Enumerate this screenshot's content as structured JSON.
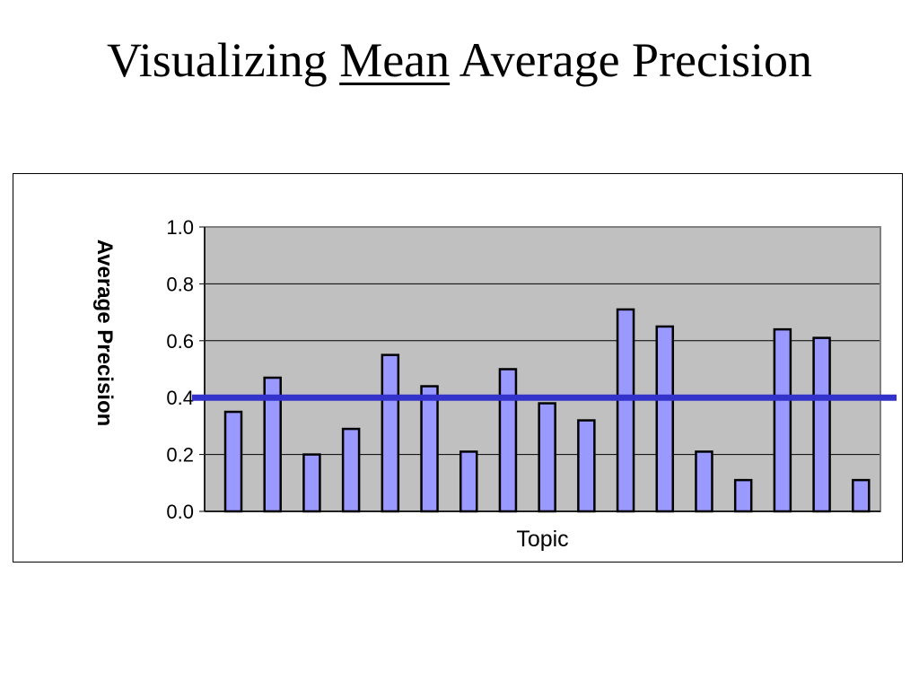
{
  "slide": {
    "title_before": "Visualizing ",
    "title_underlined": "Mean",
    "title_after": " Average Precision"
  },
  "chart_data": {
    "type": "bar",
    "title": "",
    "xlabel": "Topic",
    "ylabel": "Average Precision",
    "ylim": [
      0,
      1.0
    ],
    "yticks": [
      "0.0",
      "0.2",
      "0.4",
      "0.6",
      "0.8",
      "1.0"
    ],
    "categories": [
      "",
      "",
      "",
      "",
      "",
      "",
      "",
      "",
      "",
      "",
      "",
      "",
      "",
      "",
      "",
      "",
      ""
    ],
    "values": [
      0.35,
      0.47,
      0.2,
      0.29,
      0.55,
      0.44,
      0.21,
      0.5,
      0.38,
      0.32,
      0.71,
      0.65,
      0.21,
      0.11,
      0.64,
      0.61,
      0.11
    ],
    "mean_line": 0.4,
    "grid": true,
    "legend": "none",
    "colors": {
      "bar_fill": "#9999ff",
      "bar_stroke": "#000000",
      "plot_background": "#c0c0c0",
      "mean_line": "#3333cc",
      "gridline": "#000000"
    }
  }
}
